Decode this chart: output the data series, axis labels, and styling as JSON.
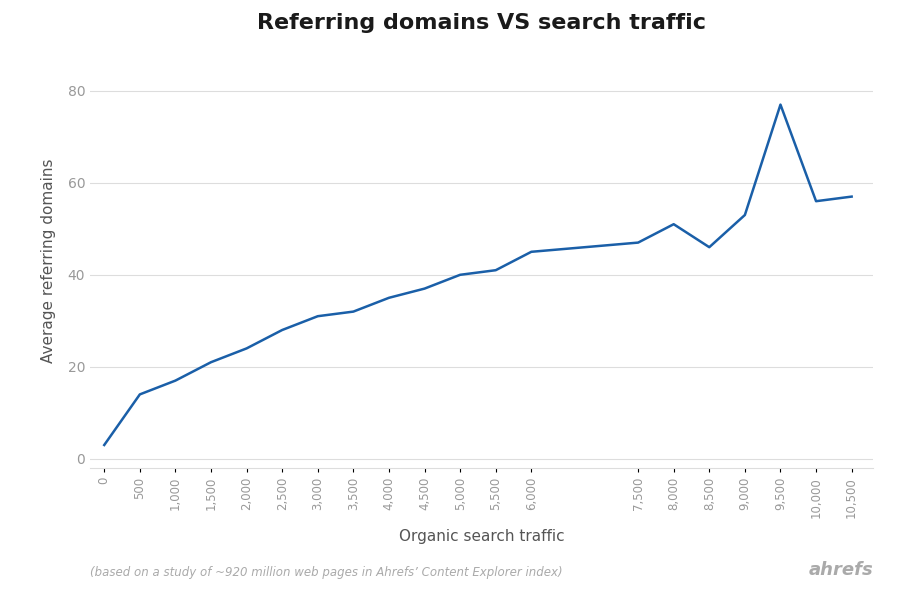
{
  "title": "Referring domains VS search traffic",
  "xlabel": "Organic search traffic",
  "ylabel": "Average referring domains",
  "footnote": "(based on a study of ~920 million web pages in Ahrefs’ Content Explorer index)",
  "branding": "ahrefs",
  "line_color": "#1a5fa8",
  "background_color": "#ffffff",
  "x": [
    0,
    500,
    1000,
    1500,
    2000,
    2500,
    3000,
    3500,
    4000,
    4500,
    5000,
    5500,
    6000,
    7500,
    8000,
    8500,
    9000,
    9500,
    10000,
    10500
  ],
  "y": [
    3,
    14,
    17,
    21,
    24,
    28,
    31,
    32,
    35,
    37,
    40,
    41,
    45,
    47,
    51,
    46,
    53,
    77,
    56,
    57
  ],
  "xlim": [
    -200,
    10800
  ],
  "ylim": [
    -2,
    88
  ],
  "yticks": [
    0,
    20,
    40,
    60,
    80
  ],
  "xticks": [
    0,
    500,
    1000,
    1500,
    2000,
    2500,
    3000,
    3500,
    4000,
    4500,
    5000,
    5500,
    6000,
    7500,
    8000,
    8500,
    9000,
    9500,
    10000,
    10500
  ],
  "tick_label_color": "#999999",
  "axis_label_color": "#555555",
  "title_color": "#1a1a1a",
  "grid_color": "#dddddd",
  "footnote_color": "#aaaaaa",
  "branding_color": "#aaaaaa"
}
